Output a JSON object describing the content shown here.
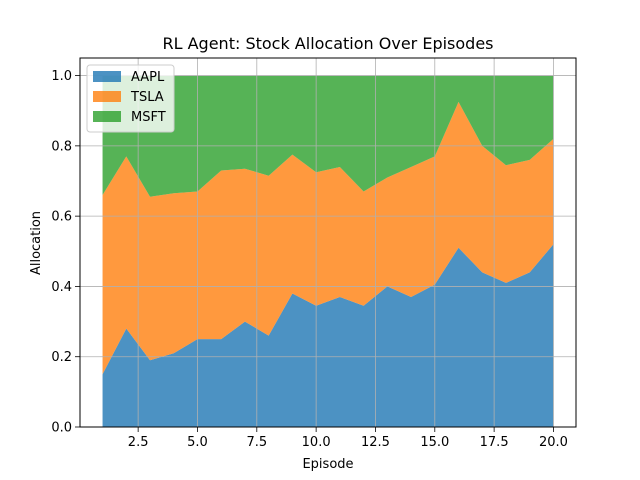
{
  "chart_data": {
    "type": "area",
    "stacked": true,
    "title": "RL Agent: Stock Allocation Over Episodes",
    "xlabel": "Episode",
    "ylabel": "Allocation",
    "xlim": [
      0.05,
      20.95
    ],
    "ylim": [
      0,
      1.05
    ],
    "xticks": [
      2.5,
      5.0,
      7.5,
      10.0,
      12.5,
      15.0,
      17.5,
      20.0
    ],
    "xtick_labels": [
      "2.5",
      "5.0",
      "7.5",
      "10.0",
      "12.5",
      "15.0",
      "17.5",
      "20.0"
    ],
    "yticks": [
      0.0,
      0.2,
      0.4,
      0.6,
      0.8,
      1.0
    ],
    "ytick_labels": [
      "0.0",
      "0.2",
      "0.4",
      "0.6",
      "0.8",
      "1.0"
    ],
    "grid": true,
    "legend_position": "upper-left",
    "x": [
      1,
      2,
      3,
      4,
      5,
      6,
      7,
      8,
      9,
      10,
      11,
      12,
      13,
      14,
      15,
      16,
      17,
      18,
      19,
      20
    ],
    "series": [
      {
        "name": "AAPL",
        "color": "#1f77b4",
        "values": [
          0.15,
          0.28,
          0.19,
          0.21,
          0.25,
          0.25,
          0.3,
          0.26,
          0.38,
          0.345,
          0.37,
          0.345,
          0.4,
          0.37,
          0.405,
          0.51,
          0.44,
          0.41,
          0.44,
          0.52
        ]
      },
      {
        "name": "TSLA",
        "color": "#ff7f0e",
        "values": [
          0.51,
          0.49,
          0.465,
          0.455,
          0.42,
          0.48,
          0.435,
          0.455,
          0.395,
          0.38,
          0.37,
          0.325,
          0.31,
          0.37,
          0.365,
          0.415,
          0.36,
          0.335,
          0.32,
          0.3
        ]
      },
      {
        "name": "MSFT",
        "color": "#2ca02c",
        "values": [
          0.34,
          0.23,
          0.345,
          0.335,
          0.33,
          0.27,
          0.265,
          0.285,
          0.225,
          0.275,
          0.26,
          0.33,
          0.29,
          0.26,
          0.23,
          0.075,
          0.2,
          0.255,
          0.24,
          0.18
        ]
      }
    ]
  }
}
